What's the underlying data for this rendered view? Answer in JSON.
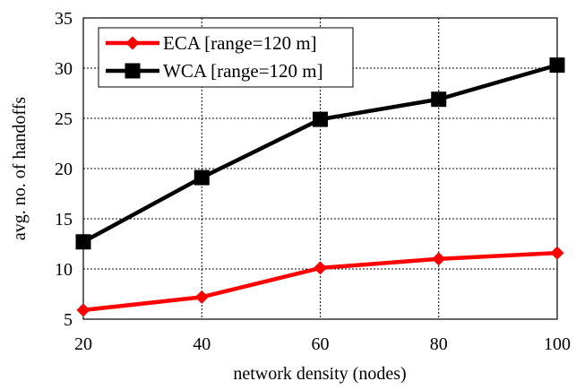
{
  "chart_data": {
    "type": "line",
    "title": "",
    "xlabel": "network density (nodes)",
    "ylabel": "avg. no. of handoffs",
    "x": [
      20,
      40,
      60,
      80,
      100
    ],
    "xlim": [
      20,
      100
    ],
    "ylim": [
      5,
      35
    ],
    "xticks": [
      "20",
      "40",
      "60",
      "80",
      "100"
    ],
    "yticks": [
      "5",
      "10",
      "15",
      "20",
      "25",
      "30",
      "35"
    ],
    "grid": true,
    "legend_position": "top-left",
    "series": [
      {
        "name": "ECA [range=120 m]",
        "values": [
          5.9,
          7.2,
          10.1,
          11.0,
          11.6
        ],
        "color": "#ff0000",
        "marker": "diamond"
      },
      {
        "name": "WCA [range=120 m]",
        "values": [
          12.7,
          19.1,
          24.9,
          26.9,
          30.3
        ],
        "color": "#000000",
        "marker": "square"
      }
    ]
  }
}
